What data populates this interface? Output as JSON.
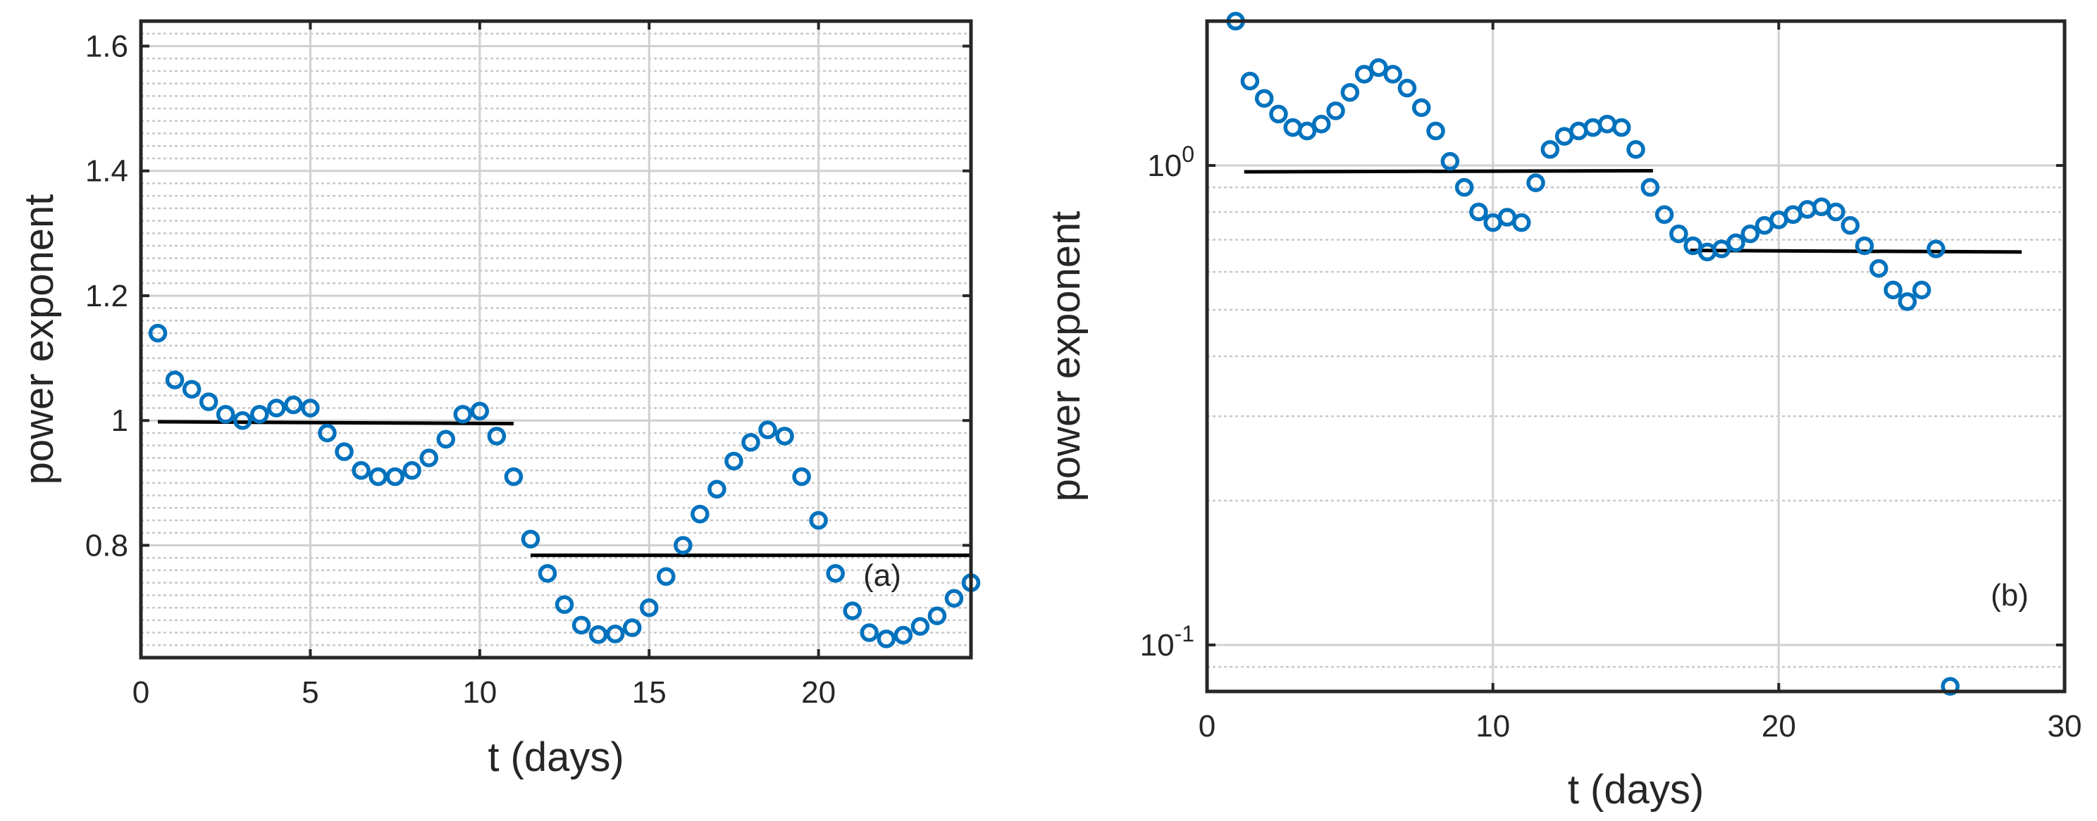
{
  "chart_data": [
    {
      "id": "a",
      "type": "scatter",
      "panel_label": "(a)",
      "xlabel": "t (days)",
      "ylabel": "power exponent",
      "xlim": [
        0,
        24.5
      ],
      "ylim": [
        0.62,
        1.64
      ],
      "xticks": [
        0,
        5,
        10,
        15,
        20
      ],
      "xtick_labels": [
        "0",
        "5",
        "10",
        "15",
        "20"
      ],
      "yticks": [
        0.8,
        1,
        1.2,
        1.4,
        1.6
      ],
      "ytick_labels": [
        "0.8",
        "1",
        "1.2",
        "1.4",
        "1.6"
      ],
      "minor_y": [
        0.64,
        0.66,
        0.68,
        0.7,
        0.72,
        0.74,
        0.76,
        0.78,
        0.82,
        0.84,
        0.86,
        0.88,
        0.9,
        0.92,
        0.94,
        0.96,
        0.98,
        1.02,
        1.04,
        1.06,
        1.08,
        1.1,
        1.12,
        1.14,
        1.16,
        1.18,
        1.22,
        1.24,
        1.26,
        1.28,
        1.3,
        1.32,
        1.34,
        1.36,
        1.38,
        1.42,
        1.44,
        1.46,
        1.48,
        1.5,
        1.52,
        1.54,
        1.56,
        1.58,
        1.62
      ],
      "grid": true,
      "marker_color": "#0072BD",
      "x": [
        0.5,
        1.0,
        1.5,
        2.0,
        2.5,
        3.0,
        3.5,
        4.0,
        4.5,
        5.0,
        5.5,
        6.0,
        6.5,
        7.0,
        7.5,
        8.0,
        8.5,
        9.0,
        9.5,
        10.0,
        10.5,
        11.0,
        11.5,
        12.0,
        12.5,
        13.0,
        13.5,
        14.0,
        14.5,
        15.0,
        15.5,
        16.0,
        16.5,
        17.0,
        17.5,
        18.0,
        18.5,
        19.0,
        19.5,
        20.0,
        20.5,
        21.0,
        21.5,
        22.0,
        22.5,
        23.0,
        23.5,
        24.0,
        24.5
      ],
      "y": [
        1.14,
        1.065,
        1.05,
        1.03,
        1.01,
        1.0,
        1.01,
        1.02,
        1.025,
        1.02,
        0.98,
        0.95,
        0.92,
        0.91,
        0.91,
        0.92,
        0.94,
        0.97,
        1.01,
        1.015,
        0.975,
        0.91,
        0.81,
        0.755,
        0.705,
        0.672,
        0.657,
        0.658,
        0.668,
        0.7,
        0.75,
        0.8,
        0.85,
        0.89,
        0.935,
        0.965,
        0.985,
        0.975,
        0.91,
        0.84,
        0.755,
        0.695,
        0.66,
        0.65,
        0.656,
        0.67,
        0.687,
        0.715,
        0.74
      ],
      "fit_lines": [
        {
          "x": [
            0.5,
            11.0
          ],
          "y": [
            0.998,
            0.995
          ]
        },
        {
          "x": [
            11.5,
            24.5
          ],
          "y": [
            0.784,
            0.784
          ]
        }
      ]
    },
    {
      "id": "b",
      "type": "scatter",
      "panel_label": "(b)",
      "xlabel": "t (days)",
      "ylabel": "power exponent",
      "xscale": "linear",
      "yscale": "log",
      "xlim": [
        0,
        30
      ],
      "ylim": [
        0.08,
        2.0
      ],
      "xticks": [
        0,
        10,
        20,
        30
      ],
      "xtick_labels": [
        "0",
        "10",
        "20",
        "30"
      ],
      "yticks": [
        0.1,
        1
      ],
      "ytick_labels": [
        {
          "base": "10",
          "exp": "-1"
        },
        {
          "base": "10",
          "exp": "0"
        }
      ],
      "minor_y": [
        0.09,
        0.2,
        0.3,
        0.4,
        0.5,
        0.6,
        0.7,
        0.8,
        0.9,
        2.0
      ],
      "grid": true,
      "marker_color": "#0072BD",
      "x": [
        1.0,
        1.5,
        2.0,
        2.5,
        3.0,
        3.5,
        4.0,
        4.5,
        5.0,
        5.5,
        6.0,
        6.5,
        7.0,
        7.5,
        8.0,
        8.5,
        9.0,
        9.5,
        10.0,
        10.5,
        11.0,
        11.5,
        12.0,
        12.5,
        13.0,
        13.5,
        14.0,
        14.5,
        15.0,
        15.5,
        16.0,
        16.5,
        17.0,
        17.5,
        18.0,
        18.5,
        19.0,
        19.5,
        20.0,
        20.5,
        21.0,
        21.5,
        22.0,
        22.5,
        23.0,
        23.5,
        24.0,
        24.5,
        25.0,
        25.5,
        26.0
      ],
      "y": [
        2.0,
        1.5,
        1.38,
        1.28,
        1.2,
        1.18,
        1.22,
        1.3,
        1.42,
        1.55,
        1.6,
        1.55,
        1.45,
        1.32,
        1.18,
        1.02,
        0.9,
        0.8,
        0.76,
        0.78,
        0.76,
        0.92,
        1.08,
        1.15,
        1.18,
        1.2,
        1.22,
        1.2,
        1.08,
        0.9,
        0.79,
        0.72,
        0.68,
        0.66,
        0.67,
        0.69,
        0.72,
        0.75,
        0.77,
        0.79,
        0.81,
        0.82,
        0.8,
        0.75,
        0.68,
        0.61,
        0.55,
        0.52,
        0.55,
        0.67,
        0.082
      ],
      "fit_lines": [
        {
          "x": [
            1.3,
            15.6
          ],
          "y": [
            0.97,
            0.975
          ]
        },
        {
          "x": [
            16.9,
            28.5
          ],
          "y": [
            0.665,
            0.66
          ]
        }
      ]
    }
  ]
}
